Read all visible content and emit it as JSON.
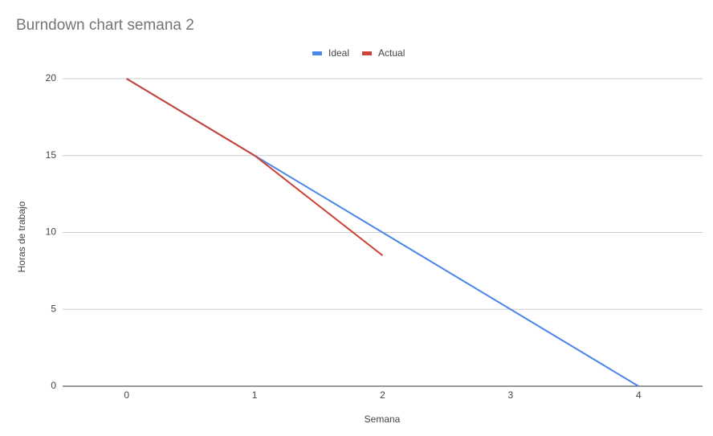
{
  "chart_data": {
    "type": "line",
    "title": "Burndown chart semana 2",
    "x_label": "Semana",
    "y_label": "Horas de trabajo",
    "x": [
      0,
      1,
      2,
      3,
      4
    ],
    "series": [
      {
        "name": "Ideal",
        "color": "#4a86e8",
        "values": [
          20,
          15,
          10,
          5,
          0
        ]
      },
      {
        "name": "Actual",
        "color": "#cc4437",
        "values": [
          20,
          15,
          8.5,
          null,
          null
        ]
      }
    ],
    "xlim": [
      -0.5,
      4.5
    ],
    "xticks": [
      0,
      1,
      2,
      3,
      4
    ],
    "ylim": [
      0,
      20
    ],
    "yticks": [
      0,
      5,
      10,
      15,
      20
    ],
    "grid": true,
    "legend": "top"
  }
}
